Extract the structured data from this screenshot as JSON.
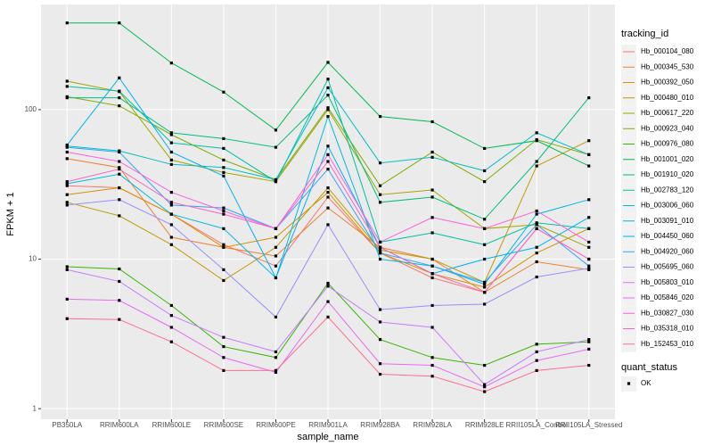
{
  "chart_data": {
    "type": "line",
    "x_label": "sample_name",
    "y_label": "FPKM + 1",
    "log_y": true,
    "grid": true,
    "point_color": "#000000",
    "categories": [
      "PB350LA",
      "RRIM600LA",
      "RRIM600LE",
      "RRIM600SE",
      "RRIM600PE",
      "RRIM901LA",
      "RRIM928BA",
      "RRIM928LA",
      "RRIM928LE",
      "RRII105LA_Control",
      "RRII105LA_Stressed"
    ],
    "ylim": [
      0.85,
      505
    ],
    "yticks": [
      1,
      10,
      100
    ],
    "legend_title": "tracking_id",
    "legend_position": "right",
    "series": [
      {
        "name": "Hb_000104_080",
        "color": "#F8766D",
        "values": [
          31,
          30,
          20,
          12.5,
          9,
          26,
          11,
          7.5,
          6,
          16,
          10
        ]
      },
      {
        "name": "Hb_000345_530",
        "color": "#EA8331",
        "values": [
          47,
          41,
          14,
          12,
          10.5,
          22,
          12,
          10,
          6,
          9.6,
          8.5
        ]
      },
      {
        "name": "Hb_000392_050",
        "color": "#D89000",
        "values": [
          27,
          30,
          20,
          12,
          14,
          28,
          11,
          8,
          6.5,
          11,
          16
        ]
      },
      {
        "name": "Hb_000480_010",
        "color": "#C09B00",
        "values": [
          24,
          19.5,
          12.5,
          7.2,
          12,
          30,
          11.5,
          10,
          7,
          42,
          62
        ]
      },
      {
        "name": "Hb_000617_220",
        "color": "#A3A500",
        "values": [
          155,
          132,
          46,
          38,
          33,
          100,
          27,
          29,
          16,
          17,
          12
        ]
      },
      {
        "name": "Hb_000923_040",
        "color": "#7CAE00",
        "values": [
          122,
          106,
          68,
          46,
          34,
          103,
          31,
          52,
          33,
          63,
          50
        ]
      },
      {
        "name": "Hb_000976_080",
        "color": "#39B600",
        "values": [
          8.9,
          8.6,
          4.9,
          2.6,
          2.2,
          6.9,
          2.9,
          2.2,
          1.95,
          2.7,
          2.8
        ]
      },
      {
        "name": "Hb_001001_020",
        "color": "#00BB4E",
        "values": [
          380,
          380,
          205,
          131,
          73,
          207,
          90,
          83,
          55,
          62,
          42
        ]
      },
      {
        "name": "Hb_001910_020",
        "color": "#00BF7D",
        "values": [
          120,
          120,
          70,
          64,
          56,
          125,
          24,
          26,
          18.5,
          45,
          120
        ]
      },
      {
        "name": "Hb_002783_120",
        "color": "#00C1A3",
        "values": [
          143,
          133,
          60,
          55,
          33,
          160,
          13,
          15,
          12.5,
          17.5,
          16
        ]
      },
      {
        "name": "Hb_003006_060",
        "color": "#00BFC4",
        "values": [
          57,
          53,
          43,
          41,
          34,
          140,
          44,
          48,
          39,
          70,
          50
        ]
      },
      {
        "name": "Hb_003091_010",
        "color": "#00BAE0",
        "values": [
          32,
          37,
          20,
          16,
          7.5,
          90,
          10,
          9,
          6.8,
          20,
          25
        ]
      },
      {
        "name": "Hb_004450_060",
        "color": "#00B0F6",
        "values": [
          58,
          163,
          52,
          36,
          7.5,
          57,
          12,
          8,
          10,
          12,
          19
        ]
      },
      {
        "name": "Hb_004920_060",
        "color": "#35A2FF",
        "values": [
          56,
          52,
          23,
          22,
          16,
          40,
          11,
          9,
          7,
          17,
          9
        ]
      },
      {
        "name": "Hb_005695_060",
        "color": "#9590FF",
        "values": [
          23,
          25,
          17,
          8.5,
          4.1,
          17,
          4.6,
          4.9,
          5,
          7.6,
          8.7
        ]
      },
      {
        "name": "Hb_005803_010",
        "color": "#C77CFF",
        "values": [
          8.5,
          7.1,
          4.2,
          3.0,
          2.4,
          6.6,
          3.8,
          3.5,
          1.45,
          2.4,
          2.9
        ]
      },
      {
        "name": "Hb_005846_020",
        "color": "#E76BF3",
        "values": [
          5.4,
          5.3,
          3.5,
          2.2,
          1.75,
          5.2,
          2.0,
          1.95,
          1.4,
          2.1,
          2.5
        ]
      },
      {
        "name": "Hb_030827_030",
        "color": "#FA62DB",
        "values": [
          52,
          45,
          28,
          21,
          16,
          50,
          13,
          19,
          16,
          21,
          13
        ]
      },
      {
        "name": "Hb_035318_010",
        "color": "#FF62BC",
        "values": [
          33,
          40,
          24,
          20,
          16,
          45,
          12,
          8,
          6,
          16,
          10
        ]
      },
      {
        "name": "Hb_152453_010",
        "color": "#FF6C91",
        "values": [
          4.0,
          3.95,
          2.8,
          1.8,
          1.8,
          4.1,
          1.7,
          1.65,
          1.3,
          1.8,
          1.95
        ]
      }
    ],
    "quant_status": {
      "title": "quant_status",
      "labels": [
        "OK"
      ]
    }
  }
}
